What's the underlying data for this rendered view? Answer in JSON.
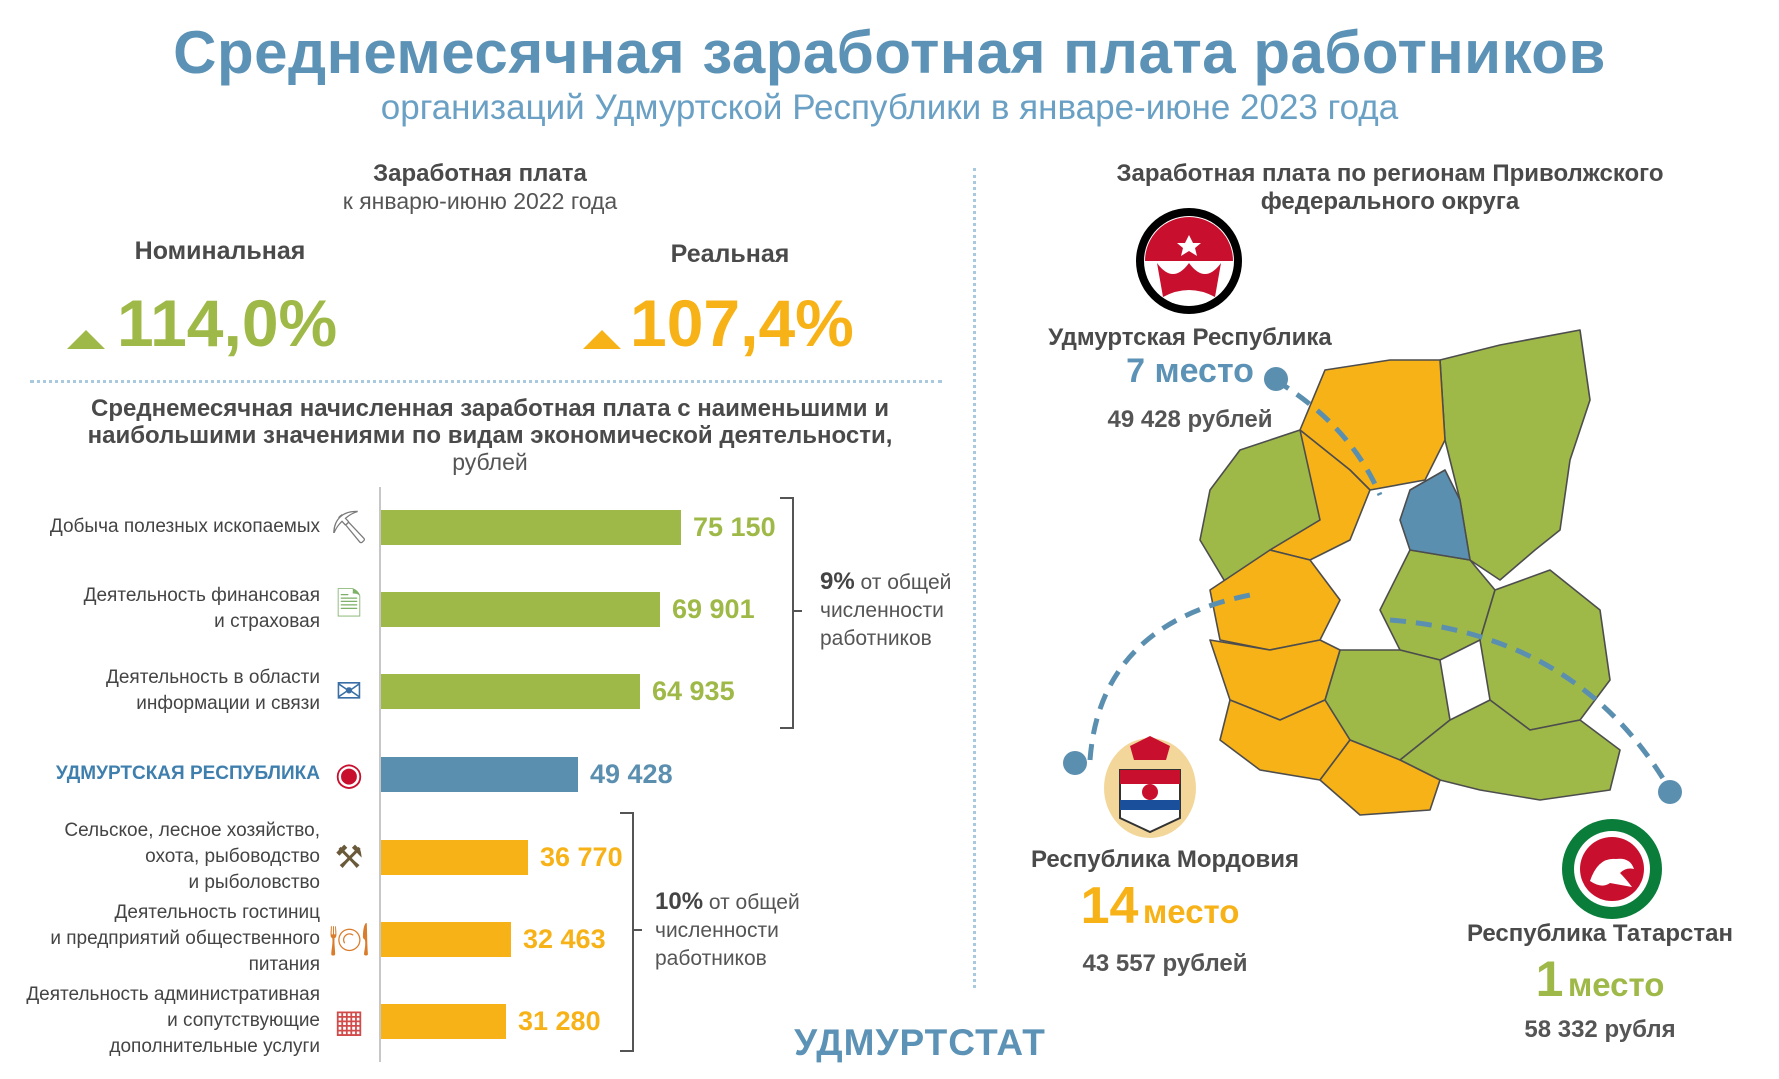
{
  "header": {
    "title": "Среднемесячная заработная плата работников",
    "subtitle": "организаций Удмуртской Республики в январе-июне 2023 года"
  },
  "growth": {
    "title": "Заработная плата",
    "subtitle": "к январю-июню 2022 года",
    "nominal_label": "Номинальная",
    "nominal_value": "114,0%",
    "real_label": "Реальная",
    "real_value": "107,4%"
  },
  "colors": {
    "green": "#9fb948",
    "orange": "#f7b217",
    "blue": "#5b8fb0",
    "title_blue": "#5b92b5"
  },
  "chart_title": {
    "line1": "Среднемесячная начисленная заработная плата с наименьшими и",
    "line2": "наибольшими значениями по видам экономической деятельности,",
    "line3": "рублей"
  },
  "chart_data": {
    "type": "bar",
    "orientation": "horizontal",
    "title": "Среднемесячная начисленная заработная плата с наименьшими и наибольшими значениями по видам экономической деятельности, рублей",
    "categories": [
      "Добыча полезных ископаемых",
      "Деятельность финансовая и страховая",
      "Деятельность в области информации и связи",
      "УДМУРТСКАЯ РЕСПУБЛИКА",
      "Сельское, лесное хозяйство, охота, рыбоводство и рыболовство",
      "Деятельность гостиниц и предприятий общественного питания",
      "Деятельность административная и сопутствующие дополнительные услуги"
    ],
    "category_lines": [
      [
        "Добыча полезных ископаемых"
      ],
      [
        "Деятельность финансовая",
        "и страховая"
      ],
      [
        "Деятельность в области",
        "информации и связи"
      ],
      [
        "УДМУРТСКАЯ РЕСПУБЛИКА"
      ],
      [
        "Сельское, лесное хозяйство,",
        "охота, рыбоводство",
        "и рыболовство"
      ],
      [
        "Деятельность гостиниц",
        "и предприятий общественного",
        "питания"
      ],
      [
        "Деятельность административная",
        "и сопутствующие",
        "дополнительные услуги"
      ]
    ],
    "values": [
      75150,
      69901,
      64935,
      49428,
      36770,
      32463,
      31280
    ],
    "value_labels": [
      "75 150",
      "69 901",
      "64 935",
      "49 428",
      "36 770",
      "32 463",
      "31 280"
    ],
    "groups": [
      "high",
      "high",
      "high",
      "region",
      "low",
      "low",
      "low"
    ],
    "xlim": [
      0,
      75150
    ],
    "icons": [
      "shovel-gem-icon",
      "finance-document-icon",
      "phone-mail-icon",
      "udmurtia-emblem-icon",
      "fishing-rods-icon",
      "food-plate-icon",
      "building-icon"
    ]
  },
  "notes": {
    "high_pct": "9%",
    "high_text": "от общей численности работников",
    "low_pct": "10%",
    "low_text": "от общей численности работников"
  },
  "regions": {
    "title_line1": "Заработная плата по регионам Приволжского",
    "title_line2": "федерального округа",
    "udmurtia": {
      "name": "Удмуртская Республика",
      "rank_num": "7",
      "rank_word": "место",
      "salary": "49 428 рублей"
    },
    "mordovia": {
      "name": "Республика Мордовия",
      "rank_num": "14",
      "rank_word": "место",
      "salary": "43 557 рублей"
    },
    "tatarstan": {
      "name": "Республика Татарстан",
      "rank_num": "1",
      "rank_word": "место",
      "salary": "58 332 рубля"
    }
  },
  "footer": {
    "brand": "УДМУРТСТАТ"
  }
}
